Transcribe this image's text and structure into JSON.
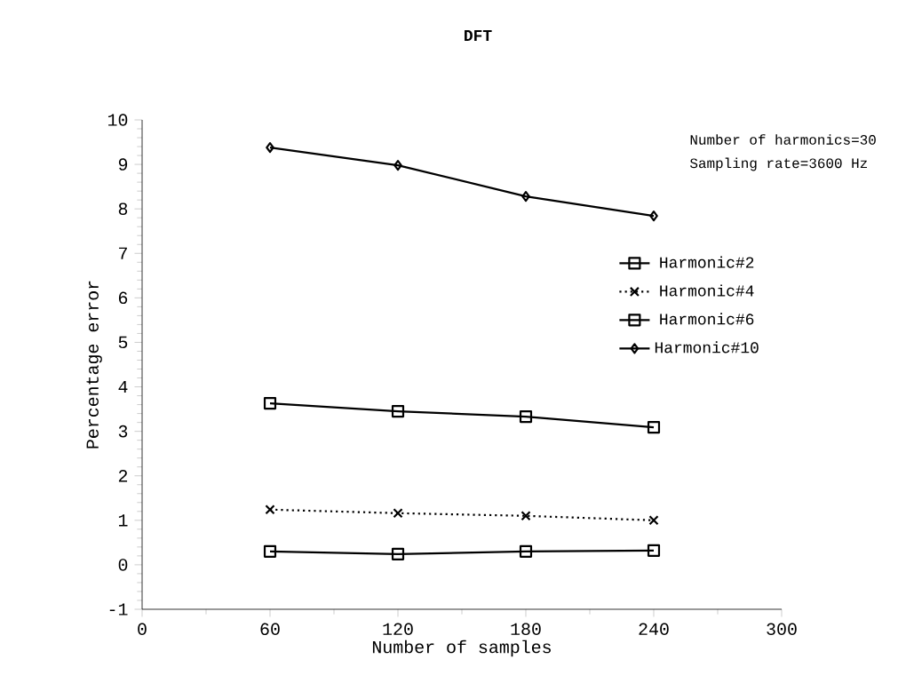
{
  "chart_data": {
    "type": "line",
    "title": "DFT",
    "xlabel": "Number of samples",
    "ylabel": "Percentage error",
    "annotations": [
      "Number of harmonics=30",
      "Sampling rate=3600 Hz"
    ],
    "x": [
      60,
      120,
      180,
      240
    ],
    "series": [
      {
        "name": "Harmonic#2",
        "color": "#000000",
        "marker": "square",
        "line_style": "solid",
        "values": [
          0.3,
          0.24,
          0.3,
          0.32
        ]
      },
      {
        "name": "Harmonic#4",
        "color": "#000000",
        "marker": "cross",
        "line_style": "dotted",
        "values": [
          1.24,
          1.16,
          1.1,
          1.0
        ]
      },
      {
        "name": "Harmonic#6",
        "color": "#000000",
        "marker": "square",
        "line_style": "solid",
        "values": [
          3.63,
          3.45,
          3.33,
          3.09
        ]
      },
      {
        "name": "Harmonic#10",
        "color": "#000000",
        "marker": "diamond",
        "line_style": "solid",
        "values": [
          9.38,
          8.98,
          8.28,
          7.84
        ]
      }
    ],
    "xlim": [
      0,
      300
    ],
    "ylim": [
      -1,
      10
    ],
    "xticks": [
      0,
      60,
      120,
      180,
      240,
      300
    ],
    "yticks": [
      -1,
      0,
      1,
      2,
      3,
      4,
      5,
      6,
      7,
      8,
      9,
      10
    ],
    "legend": "right"
  }
}
